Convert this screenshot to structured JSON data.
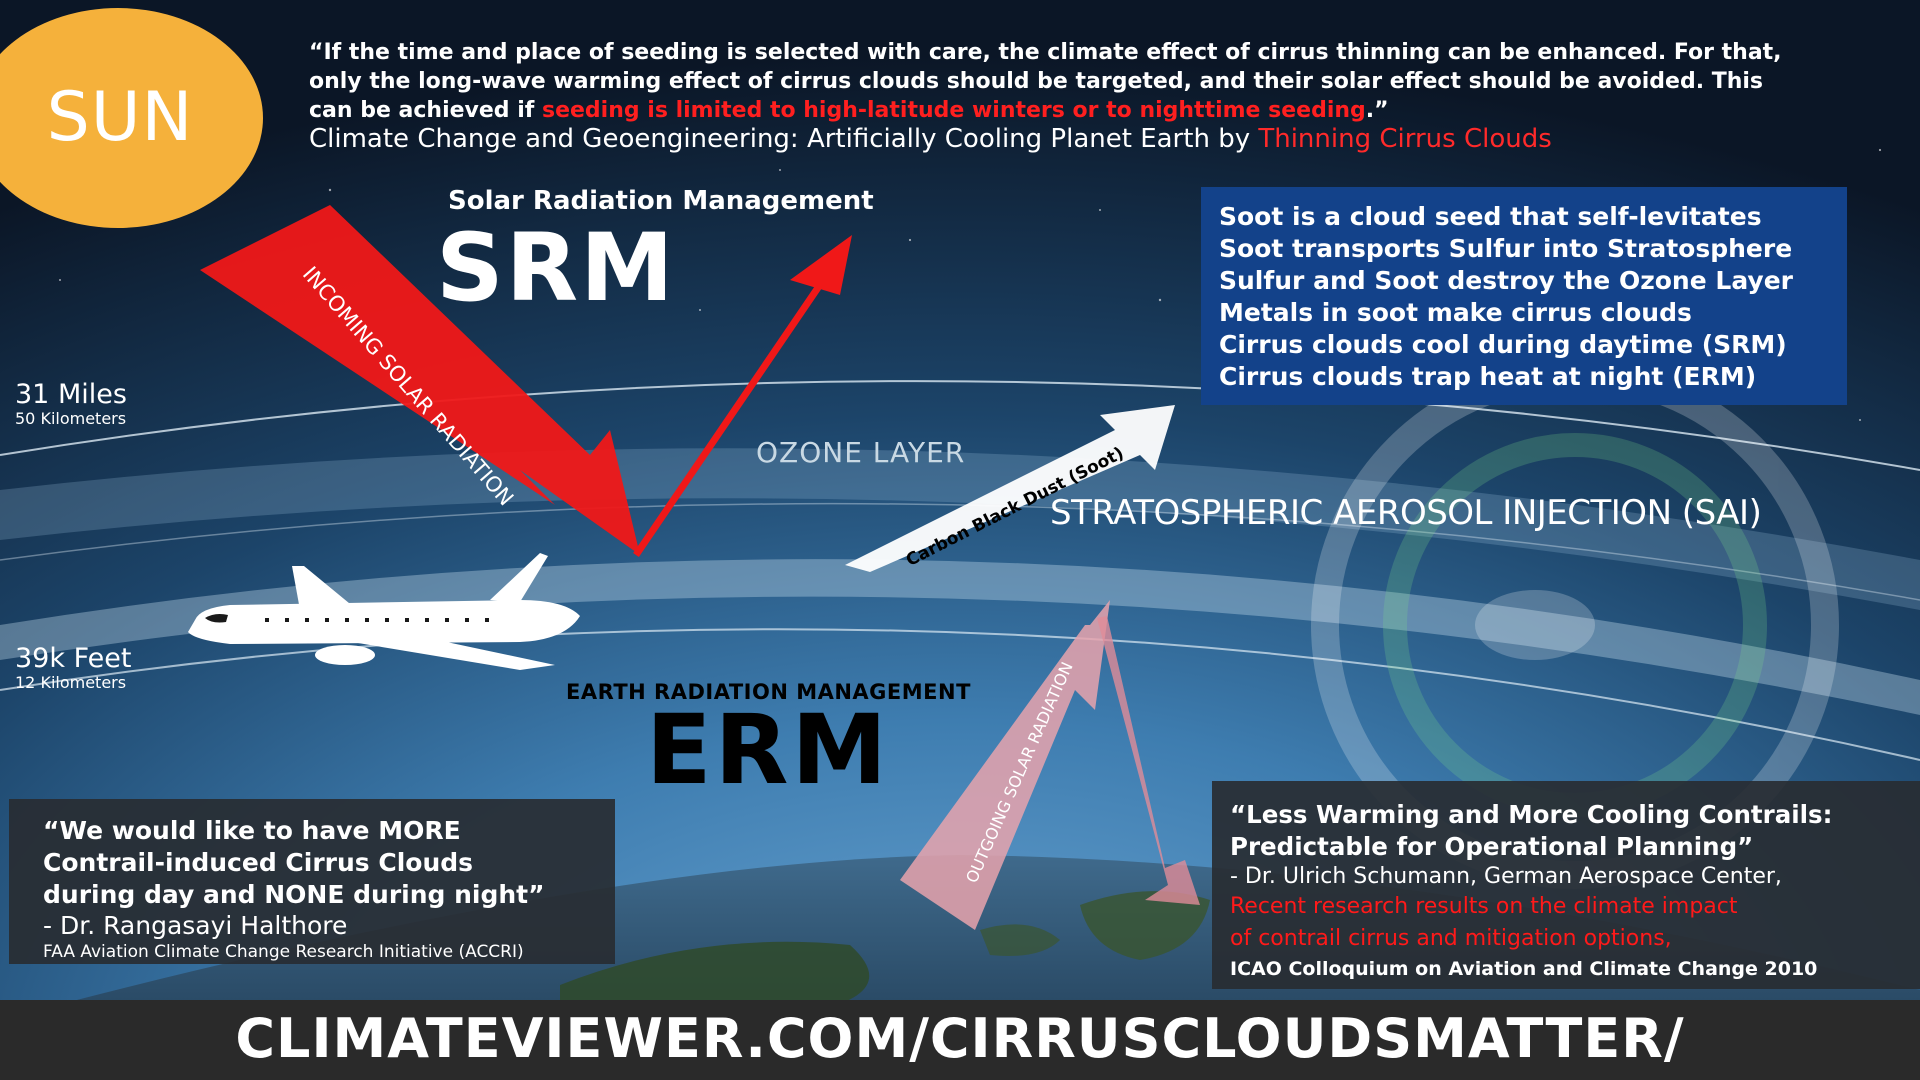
{
  "sun": {
    "label": "SUN"
  },
  "top_quote": {
    "text_before": "“If the time and place of seeding is selected with care, the climate effect of cirrus thinning can be enhanced. For that, only the long-wave warming effect of cirrus clouds should be targeted, and their solar effect should be avoided. This can be achieved if ",
    "highlight": "seeding is limited to high-latitude winters or to nighttime seeding",
    "text_after": ".”",
    "citation_prefix": "Climate Change and Geoengineering: Artificially Cooling Planet Earth by ",
    "citation_highlight": "Thinning Cirrus Clouds"
  },
  "srm": {
    "subtitle": "Solar Radiation Management",
    "title": "SRM"
  },
  "arrows": {
    "incoming": "INCOMING SOLAR RADIATION",
    "soot": "Carbon Black Dust (Soot)",
    "outgoing": "OUTGOING SOLAR RADIATION"
  },
  "altitudes": [
    {
      "main": "31 Miles",
      "sub": "50 Kilometers"
    },
    {
      "main": "39k Feet",
      "sub": "12 Kilometers"
    }
  ],
  "layers": {
    "ozone": "OZONE LAYER",
    "sai": "STRATOSPHERIC AEROSOL INJECTION (SAI)"
  },
  "facts": [
    "Soot is a cloud seed that self-levitates",
    "Soot transports Sulfur into Stratosphere",
    "Sulfur and Soot destroy the Ozone Layer",
    "Metals in soot make cirrus clouds",
    "Cirrus clouds cool during daytime (SRM)",
    "Cirrus clouds trap heat at night (ERM)"
  ],
  "erm": {
    "subtitle": "EARTH RADIATION MANAGEMENT",
    "title": "ERM"
  },
  "left_quote": {
    "lines": [
      "“We would like to have MORE",
      "Contrail-induced Cirrus Clouds",
      "during day and NONE during night”"
    ],
    "speaker": "- Dr. Rangasayi Halthore",
    "organization": "FAA Aviation Climate Change Research Initiative (ACCRI)"
  },
  "right_quote": {
    "lines": [
      "“Less Warming and More Cooling Contrails:",
      "Predictable for Operational Planning”"
    ],
    "speaker": "- Dr. Ulrich Schumann, German Aerospace Center,",
    "red_lines": [
      "Recent research results on the climate impact",
      "of contrail cirrus and mitigation options,"
    ],
    "event": "ICAO Colloquium on Aviation and Climate Change 2010"
  },
  "footer": {
    "url": "CLIMATEVIEWER.COM/CIRRUSCLOUDSMATTER/"
  },
  "colors": {
    "sun": "#f5b13b",
    "red_arrow": "#f01818",
    "fact_box": "#13428a",
    "quote_box": "#2c3036",
    "highlight_red": "#ff1f1f"
  }
}
